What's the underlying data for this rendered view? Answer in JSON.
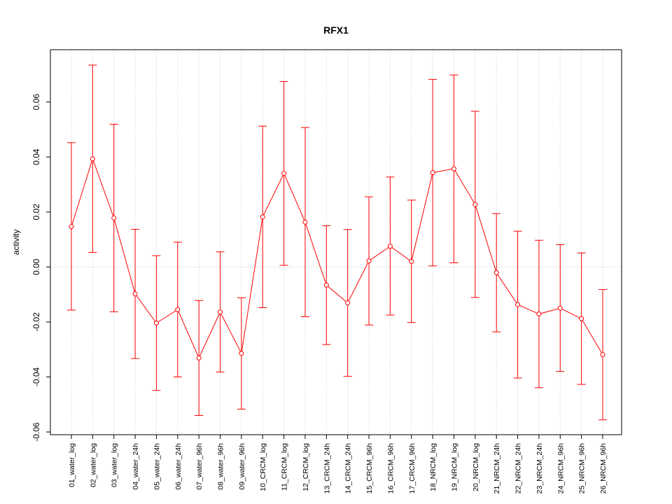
{
  "chart_data": {
    "type": "line",
    "title": "RFX1",
    "xlabel": "",
    "ylabel": "activity",
    "ylim": [
      -0.061,
      0.079
    ],
    "yticks": [
      -0.06,
      -0.04,
      -0.02,
      0.0,
      0.02,
      0.04,
      0.06
    ],
    "ytick_labels": [
      "-0.06",
      "-0.04",
      "-0.02",
      "0.00",
      "0.02",
      "0.04",
      "0.06"
    ],
    "grid": true,
    "color": "#ff0000",
    "categories": [
      "01_water_log",
      "02_water_log",
      "03_water_log",
      "04_water_24h",
      "05_water_24h",
      "06_water_24h",
      "07_water_96h",
      "08_water_96h",
      "09_water_96h",
      "10_CRCM_log",
      "11_CRCM_log",
      "12_CRCM_log",
      "13_CRCM_24h",
      "14_CRCM_24h",
      "15_CRCM_96h",
      "16_CRCM_96h",
      "17_CRCM_96h",
      "18_NRCM_log",
      "19_NRCM_log",
      "20_NRCM_log",
      "21_NRCM_24h",
      "22_NRCM_24h",
      "23_NRCM_24h",
      "24_NRCM_96h",
      "25_NRCM_96h",
      "26_NRCM_96h"
    ],
    "values": [
      0.0147,
      0.0393,
      0.0178,
      -0.0098,
      -0.0204,
      -0.0155,
      -0.0331,
      -0.0164,
      -0.0314,
      0.0182,
      0.034,
      0.0163,
      -0.0066,
      -0.0131,
      0.0022,
      0.0075,
      0.002,
      0.0343,
      0.0357,
      0.0227,
      -0.0021,
      -0.0137,
      -0.0171,
      -0.015,
      -0.0188,
      -0.0319
    ],
    "upper": [
      0.0452,
      0.0734,
      0.0519,
      0.0137,
      0.0041,
      0.009,
      -0.0122,
      0.0055,
      -0.0112,
      0.0512,
      0.0674,
      0.0507,
      0.015,
      0.0136,
      0.0255,
      0.0327,
      0.0243,
      0.0682,
      0.0698,
      0.0566,
      0.0194,
      0.013,
      0.0097,
      0.0081,
      0.0051,
      -0.0082
    ],
    "lower": [
      -0.0157,
      0.0053,
      -0.0163,
      -0.0333,
      -0.0449,
      -0.04,
      -0.054,
      -0.0382,
      -0.0517,
      -0.0148,
      0.0006,
      -0.0181,
      -0.0282,
      -0.0398,
      -0.0211,
      -0.0175,
      -0.0202,
      0.0004,
      0.0015,
      -0.0111,
      -0.0236,
      -0.0404,
      -0.0439,
      -0.038,
      -0.0427,
      -0.0556
    ]
  }
}
